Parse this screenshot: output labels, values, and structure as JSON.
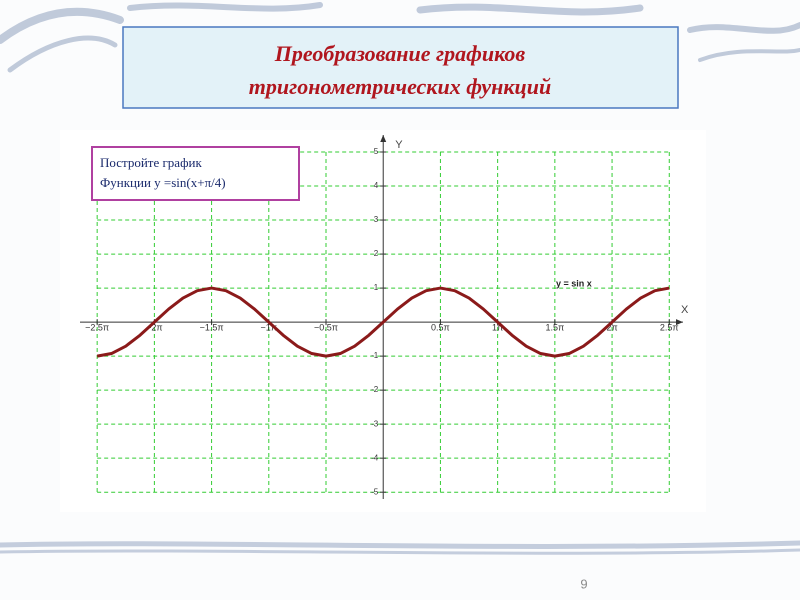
{
  "slide": {
    "title": [
      "Преобразование графиков",
      "тригонометрических функций"
    ],
    "task": [
      "Постройте график",
      "Функции y =sin(x+π/4)"
    ],
    "page_number": 9
  },
  "chart_data": {
    "type": "line",
    "x_label": "X",
    "y_label": "Y",
    "x": [
      -2.5,
      -2.375,
      -2.25,
      -2.125,
      -2,
      -1.875,
      -1.75,
      -1.625,
      -1.5,
      -1.375,
      -1.25,
      -1.125,
      -1,
      -0.875,
      -0.75,
      -0.625,
      -0.5,
      -0.375,
      -0.25,
      -0.125,
      0,
      0.125,
      0.25,
      0.375,
      0.5,
      0.625,
      0.75,
      0.875,
      1,
      1.125,
      1.25,
      1.375,
      1.5,
      1.625,
      1.75,
      1.875,
      2,
      2.125,
      2.25,
      2.375,
      2.5
    ],
    "series": [
      {
        "name": "y = sin x",
        "color": "#8b1a1a",
        "values": [
          -1,
          -0.924,
          -0.707,
          -0.383,
          0,
          0.383,
          0.707,
          0.924,
          1,
          0.924,
          0.707,
          0.383,
          0,
          -0.383,
          -0.707,
          -0.924,
          -1,
          -0.924,
          -0.707,
          -0.383,
          0,
          0.383,
          0.707,
          0.924,
          1,
          0.924,
          0.707,
          0.383,
          0,
          -0.383,
          -0.707,
          -0.924,
          -1,
          -0.924,
          -0.707,
          -0.383,
          0,
          0.383,
          0.707,
          0.924,
          1
        ]
      }
    ],
    "xlim": [
      -2.65,
      2.62
    ],
    "ylim": [
      -5.2,
      5.5
    ],
    "xticks": [
      {
        "value": -2.5,
        "label": "−2.5π"
      },
      {
        "value": -2,
        "label": "−2π"
      },
      {
        "value": -1.5,
        "label": "−1.5π"
      },
      {
        "value": -1,
        "label": "−1π"
      },
      {
        "value": -0.5,
        "label": "−0.5π"
      },
      {
        "value": 0.5,
        "label": "0.5π"
      },
      {
        "value": 1,
        "label": "1π"
      },
      {
        "value": 1.5,
        "label": "1.5π"
      },
      {
        "value": 2,
        "label": "2π"
      },
      {
        "value": 2.5,
        "label": "2.5π"
      }
    ],
    "yticks": [
      -5,
      -4,
      -3,
      -2,
      -1,
      1,
      2,
      3,
      4,
      5
    ],
    "grid": true,
    "grid_color": "#33cc33"
  }
}
